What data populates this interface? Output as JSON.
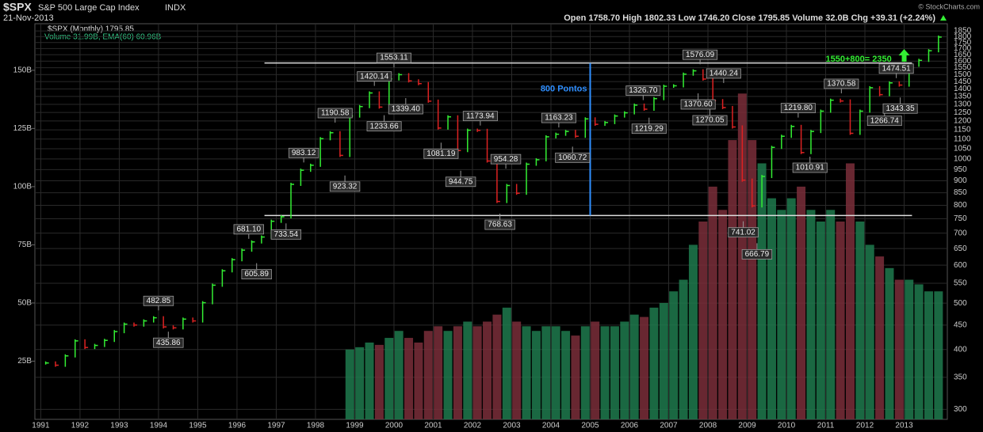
{
  "header": {
    "symbol": "$SPX",
    "name": "S&P 500 Large Cap Index",
    "exchange": "INDX",
    "date": "21-Nov-2013",
    "ohlc": "Open 1758.70  High 1802.33  Low 1746.20  Close 1795.85  Volume 32.0B  Chg +39.31 (+2.24%)",
    "credit": "© StockCharts.com",
    "legend_price": "$SPX (Monthly) 1795.85",
    "legend_volume": "Volume 31.99B, EMA(60) 60.96B"
  },
  "chart_data": {
    "type": "ohlc",
    "log": true,
    "grid": true,
    "xticks": [
      1991,
      1992,
      1993,
      1994,
      1995,
      1996,
      1997,
      1998,
      1999,
      2000,
      2001,
      2002,
      2003,
      2004,
      2005,
      2006,
      2007,
      2008,
      2009,
      2010,
      2011,
      2012,
      2013
    ],
    "xlim": [
      1990.85,
      2014.1
    ],
    "ylim": [
      286,
      1915
    ],
    "yticks": [
      1850,
      1800,
      1750,
      1700,
      1650,
      1600,
      1550,
      1500,
      1450,
      1400,
      1350,
      1300,
      1250,
      1200,
      1150,
      1100,
      1050,
      1000,
      950,
      900,
      850,
      800,
      750,
      700,
      650,
      600,
      550,
      500,
      450,
      400,
      350,
      300
    ],
    "y2lim": [
      0,
      170
    ],
    "y2ticks": [
      {
        "value": 25,
        "label": "25B"
      },
      {
        "value": 50,
        "label": "50B"
      },
      {
        "value": 75,
        "label": "75B"
      },
      {
        "value": 100,
        "label": "100B"
      },
      {
        "value": 125,
        "label": "125B"
      },
      {
        "value": 150,
        "label": "150B"
      }
    ],
    "series": [
      {
        "name": "$SPX (Monthly)",
        "up_color": "#33ee33",
        "down_color": "#dd2222",
        "values": [
          375,
          371,
          388,
          417,
          404,
          408,
          418,
          436,
          452,
          450,
          459,
          466,
          446,
          444,
          463,
          459,
          501,
          545,
          584,
          616,
          645,
          671,
          687,
          741,
          757,
          885,
          947,
          970,
          1102,
          1134,
          1017,
          1229,
          1286,
          1373,
          1283,
          1469,
          1499,
          1455,
          1436,
          1320,
          1160,
          1224,
          1041,
          1148,
          1147,
          990,
          815,
          880,
          848,
          975,
          996,
          1112,
          1126,
          1141,
          1115,
          1212,
          1181,
          1191,
          1229,
          1248,
          1295,
          1270,
          1336,
          1418,
          1421,
          1503,
          1527,
          1468,
          1323,
          1280,
          1166,
          903,
          798,
          919,
          1057,
          1115,
          1169,
          1031,
          1141,
          1258,
          1326,
          1321,
          1131,
          1258,
          1408,
          1362,
          1441,
          1426,
          1569,
          1606,
          1682,
          1796
        ]
      },
      {
        "name": "Volume",
        "axis": "y2",
        "up_color": "#1f7a4d",
        "down_color": "#7a2e3a",
        "values": [
          30,
          31,
          33,
          32,
          35,
          38,
          35,
          33,
          38,
          40,
          38,
          40,
          42,
          40,
          42,
          45,
          48,
          42,
          40,
          38,
          40,
          40,
          38,
          36,
          40,
          42,
          40,
          40,
          42,
          45,
          44,
          48,
          50,
          55,
          60,
          75,
          85,
          100,
          90,
          120,
          140,
          120,
          110,
          95,
          90,
          95,
          100,
          90,
          85,
          90,
          85,
          110,
          85,
          75,
          70,
          65,
          60,
          60,
          58,
          55,
          55
        ]
      }
    ],
    "hlines": [
      1586,
      762
    ],
    "vline_label": "800 Pontos",
    "target_label": "1550+800= 2350",
    "annotations": [
      {
        "value": 1553.11,
        "label": "1553.11"
      },
      {
        "value": 1576.09,
        "label": "1576.09"
      },
      {
        "value": 1420.14,
        "label": "1420.14"
      },
      {
        "value": 1339.4,
        "label": "1339.40"
      },
      {
        "value": 1233.66,
        "label": "1233.66"
      },
      {
        "value": 1190.58,
        "label": "1190.58"
      },
      {
        "value": 983.12,
        "label": "983.12"
      },
      {
        "value": 923.32,
        "label": "923.32"
      },
      {
        "value": 681.1,
        "label": "681.10"
      },
      {
        "value": 733.54,
        "label": "733.54"
      },
      {
        "value": 605.89,
        "label": "605.89"
      },
      {
        "value": 482.85,
        "label": "482.85"
      },
      {
        "value": 435.86,
        "label": "435.86"
      },
      {
        "value": 1081.19,
        "label": "1081.19"
      },
      {
        "value": 944.75,
        "label": "944.75"
      },
      {
        "value": 1173.94,
        "label": "1173.94"
      },
      {
        "value": 954.28,
        "label": "954.28"
      },
      {
        "value": 768.63,
        "label": "768.63"
      },
      {
        "value": 1163.23,
        "label": "1163.23"
      },
      {
        "value": 1060.72,
        "label": "1060.72"
      },
      {
        "value": 1326.7,
        "label": "1326.70"
      },
      {
        "value": 1219.29,
        "label": "1219.29"
      },
      {
        "value": 1370.6,
        "label": "1370.60"
      },
      {
        "value": 1440.24,
        "label": "1440.24"
      },
      {
        "value": 1270.05,
        "label": "1270.05"
      },
      {
        "value": 741.02,
        "label": "741.02"
      },
      {
        "value": 666.79,
        "label": "666.79"
      },
      {
        "value": 1219.8,
        "label": "1219.80"
      },
      {
        "value": 1010.91,
        "label": "1010.91"
      },
      {
        "value": 1370.58,
        "label": "1370.58"
      },
      {
        "value": 1266.74,
        "label": "1266.74"
      },
      {
        "value": 1474.51,
        "label": "1474.51"
      },
      {
        "value": 1343.35,
        "label": "1343.35"
      }
    ]
  }
}
